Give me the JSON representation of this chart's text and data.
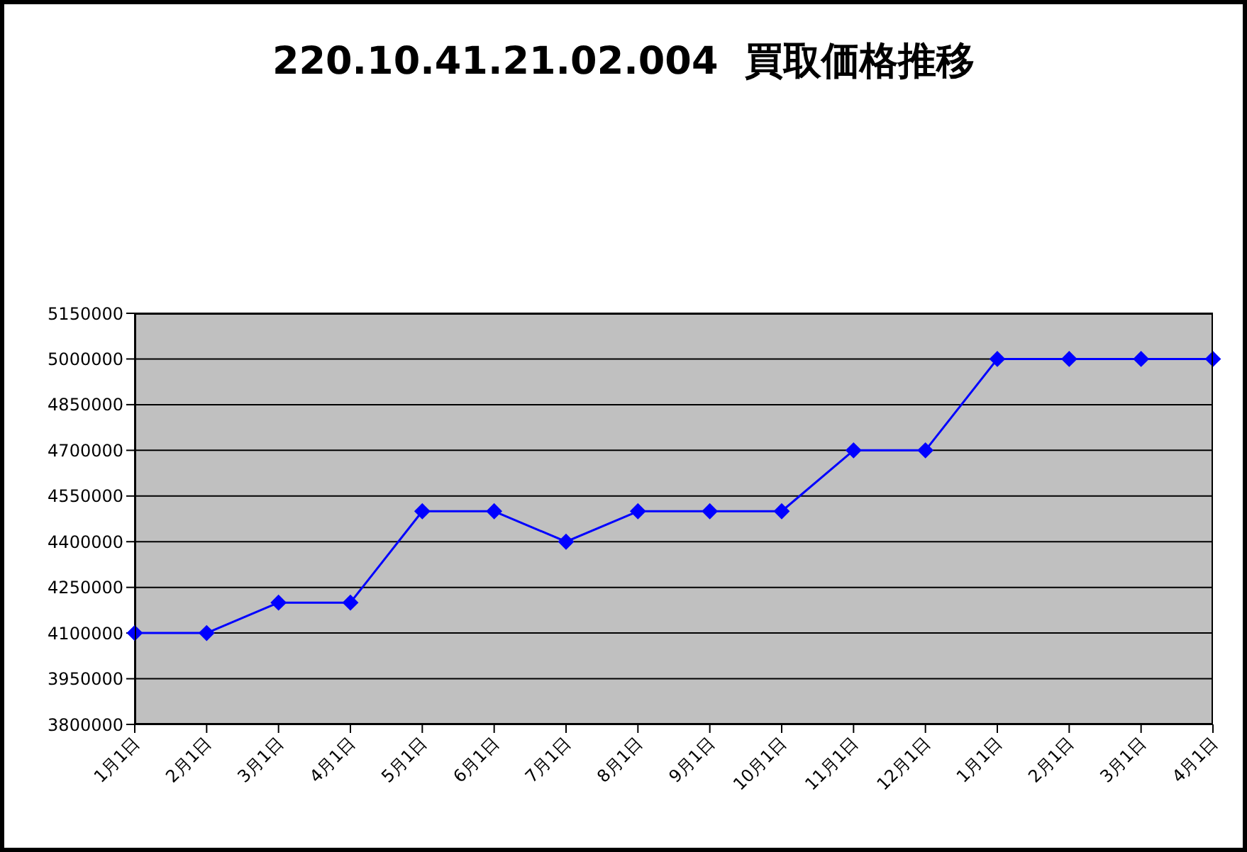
{
  "chart_data": {
    "type": "line",
    "title": "220.10.41.21.02.004  買取価格推移",
    "categories": [
      "1月1日",
      "2月1日",
      "3月1日",
      "4月1日",
      "5月1日",
      "6月1日",
      "7月1日",
      "8月1日",
      "9月1日",
      "10月1日",
      "11月1日",
      "12月1日",
      "1月1日",
      "2月1日",
      "3月1日",
      "4月1日"
    ],
    "series": [
      {
        "color": "#0000ff",
        "values": [
          4100000,
          4100000,
          4200000,
          4200000,
          4500000,
          4500000,
          4400000,
          4500000,
          4500000,
          4500000,
          4700000,
          4700000,
          5000000,
          5000000,
          5000000,
          5000000
        ]
      }
    ],
    "ylim": [
      3800000,
      5150000
    ],
    "yticks": [
      3800000,
      3950000,
      4100000,
      4250000,
      4400000,
      4550000,
      4700000,
      4850000,
      5000000,
      5150000
    ],
    "grid": "y",
    "marker": "diamond",
    "line_style": "solid"
  }
}
